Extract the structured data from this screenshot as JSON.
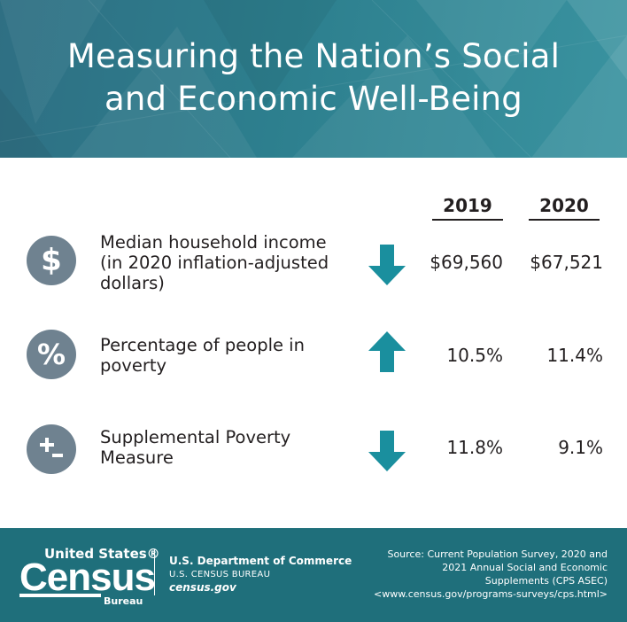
{
  "header": {
    "title_line1": "Measuring the Nation’s Social",
    "title_line2": "and Economic Well-Being"
  },
  "columns": {
    "year1": "2019",
    "year2": "2020"
  },
  "rows": [
    {
      "icon": "dollar-icon",
      "icon_glyph": "$",
      "label_lines": [
        "Median household income",
        "(in 2020 inflation-adjusted",
        "dollars)"
      ],
      "trend": "down",
      "value_2019": "$69,560",
      "value_2020": "$67,521"
    },
    {
      "icon": "percent-icon",
      "icon_glyph": "%",
      "label_lines": [
        "Percentage of people in",
        "poverty"
      ],
      "trend": "up",
      "value_2019": "10.5%",
      "value_2020": "11.4%"
    },
    {
      "icon": "plus-minus-icon",
      "icon_glyph": "+-",
      "label_lines": [
        "Supplemental Poverty",
        "Measure"
      ],
      "trend": "down",
      "value_2019": "11.8%",
      "value_2020": "9.1%"
    }
  ],
  "footer": {
    "logo_united_states": "United States®",
    "logo_census": "Census",
    "logo_bureau": "Bureau",
    "dept_line1": "U.S. Department of Commerce",
    "dept_line2": "U.S. CENSUS BUREAU",
    "dept_line3": "census.gov",
    "source_lines": [
      "Source: Current Population Survey, 2020 and",
      "2021 Annual Social and Economic",
      "Supplements (CPS ASEC)",
      "<www.census.gov/programs-surveys/cps.html>"
    ]
  },
  "colors": {
    "header_bg": "#2d7f8e",
    "icon_circle": "#6f8290",
    "arrow": "#1a8f9e",
    "footer_bg": "#1f6f7b",
    "text": "#231f20"
  }
}
